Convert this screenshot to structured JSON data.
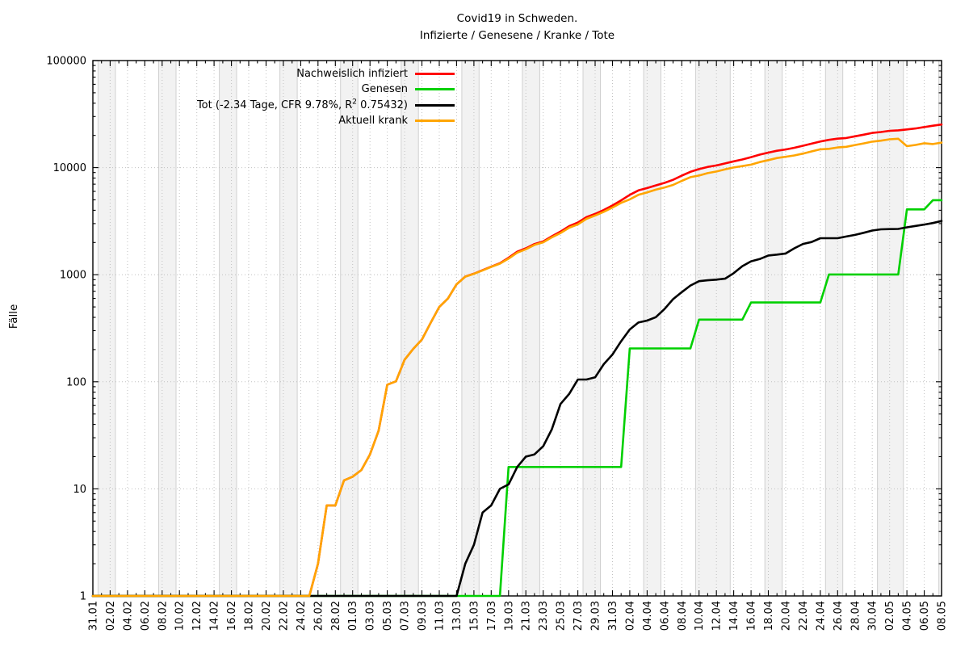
{
  "title": {
    "line1": "Covid19 in Schweden.",
    "line2": "Infizierte / Genesene / Kranke / Tote"
  },
  "y_axis": {
    "label": "Fälle",
    "tick_labels": [
      "100000",
      "10000",
      "1000",
      "100",
      "10",
      "1"
    ]
  },
  "legend": {
    "entries": [
      {
        "id": "infected",
        "color": "#ff0000",
        "parts": [
          {
            "text": "Nachweislich infiziert"
          }
        ]
      },
      {
        "id": "recovered",
        "color": "#00d000",
        "parts": [
          {
            "text": "Genesen"
          }
        ]
      },
      {
        "id": "dead",
        "color": "#000000",
        "parts": [
          {
            "text": "Tot (-2.34 Tage, CFR 9.78%, R"
          },
          {
            "text": "2",
            "sup": true
          },
          {
            "text": " 0.75432)"
          }
        ]
      },
      {
        "id": "active",
        "color": "#ffa500",
        "parts": [
          {
            "text": "Aktuell krank"
          }
        ]
      }
    ]
  },
  "chart_data": {
    "type": "line",
    "title": "Covid19 in Schweden. Infizierte / Genesene / Kranke / Tote",
    "xlabel": "",
    "ylabel": "Fälle",
    "y_scale": "log10",
    "ylim": [
      1,
      100000
    ],
    "grid": true,
    "legend_position": "top-center-inside",
    "days_total": 98,
    "x_tick_every_days": 2,
    "x_tick_labels": [
      "31.01",
      "02.02",
      "04.02",
      "06.02",
      "08.02",
      "10.02",
      "12.02",
      "14.02",
      "16.02",
      "18.02",
      "20.02",
      "22.02",
      "24.02",
      "26.02",
      "28.02",
      "01.03",
      "03.03",
      "05.03",
      "07.03",
      "09.03",
      "11.03",
      "13.03",
      "15.03",
      "17.03",
      "19.03",
      "21.03",
      "23.03",
      "25.03",
      "27.03",
      "29.03",
      "31.03",
      "02.04",
      "04.04",
      "06.04",
      "08.04",
      "10.04",
      "12.04",
      "14.04",
      "16.04",
      "18.04",
      "20.04",
      "22.04",
      "24.04",
      "26.04",
      "28.04",
      "30.04",
      "02.05",
      "04.05",
      "06.05",
      "08.05"
    ],
    "weekend_bands": [
      [
        0.6,
        2.6
      ],
      [
        7.6,
        9.6
      ],
      [
        14.6,
        16.6
      ],
      [
        21.6,
        23.6
      ],
      [
        28.6,
        30.6
      ],
      [
        35.6,
        37.6
      ],
      [
        42.6,
        44.6
      ],
      [
        49.6,
        51.6
      ],
      [
        56.6,
        58.6
      ],
      [
        63.6,
        65.6
      ],
      [
        69.6,
        73.6
      ],
      [
        77.6,
        79.6
      ],
      [
        84.6,
        86.6
      ],
      [
        90.6,
        93.6
      ]
    ],
    "marker_line_day": 97.7,
    "colors": {
      "band_fill": "#f2f2f2",
      "band_edge": "#d0d0d0",
      "grid": "#c0c0c0",
      "frame": "#000000",
      "marker_line": "#c6c6c6"
    },
    "series": [
      {
        "id": "infected",
        "name": "Nachweislich infiziert",
        "color": "#ff0000",
        "values": [
          1,
          1,
          1,
          1,
          1,
          1,
          1,
          1,
          1,
          1,
          1,
          1,
          1,
          1,
          1,
          1,
          1,
          1,
          1,
          1,
          1,
          1,
          1,
          1,
          1,
          1,
          2,
          7,
          7,
          12,
          13,
          15,
          21,
          35,
          94,
          101,
          161,
          203,
          248,
          355,
          500,
          599,
          814,
          961,
          1022,
          1103,
          1190,
          1279,
          1439,
          1639,
          1763,
          1934,
          2046,
          2286,
          2526,
          2840,
          3069,
          3447,
          3700,
          4028,
          4435,
          4947,
          5568,
          6131,
          6443,
          6830,
          7206,
          7693,
          8419,
          9141,
          9685,
          10151,
          10483,
          10948,
          11445,
          11927,
          12540,
          13216,
          13822,
          14385,
          14777,
          15322,
          16004,
          16755,
          17567,
          18177,
          18640,
          18926,
          19621,
          20302,
          21092,
          21520,
          22082,
          22317,
          22721,
          23216,
          23918,
          24623,
          25265
        ]
      },
      {
        "id": "recovered",
        "name": "Genesen",
        "color": "#00d000",
        "values": [
          1,
          1,
          1,
          1,
          1,
          1,
          1,
          1,
          1,
          1,
          1,
          1,
          1,
          1,
          1,
          1,
          1,
          1,
          1,
          1,
          1,
          1,
          1,
          1,
          1,
          1,
          1,
          1,
          1,
          1,
          1,
          1,
          1,
          1,
          1,
          1,
          1,
          1,
          1,
          1,
          1,
          1,
          1,
          1,
          1,
          1,
          1,
          1,
          16,
          16,
          16,
          16,
          16,
          16,
          16,
          16,
          16,
          16,
          16,
          16,
          16,
          16,
          205,
          205,
          205,
          205,
          205,
          205,
          205,
          205,
          381,
          381,
          381,
          381,
          381,
          381,
          550,
          550,
          550,
          550,
          550,
          550,
          550,
          550,
          550,
          1005,
          1005,
          1005,
          1005,
          1005,
          1005,
          1005,
          1005,
          1005,
          4074,
          4074,
          4074,
          4971,
          4971
        ]
      },
      {
        "id": "dead",
        "name": "Tot (-2.34 Tage, CFR 9.78%, R2 0.75432)",
        "color": "#000000",
        "values": [
          1,
          1,
          1,
          1,
          1,
          1,
          1,
          1,
          1,
          1,
          1,
          1,
          1,
          1,
          1,
          1,
          1,
          1,
          1,
          1,
          1,
          1,
          1,
          1,
          1,
          1,
          1,
          1,
          1,
          1,
          1,
          1,
          1,
          1,
          1,
          1,
          1,
          1,
          1,
          1,
          1,
          1,
          1,
          2,
          3,
          6,
          7,
          10,
          11,
          16,
          20,
          21,
          25,
          36,
          62,
          77,
          105,
          105,
          110,
          146,
          180,
          239,
          308,
          358,
          373,
          401,
          477,
          591,
          687,
          793,
          870,
          887,
          899,
          919,
          1033,
          1203,
          1333,
          1400,
          1511,
          1540,
          1580,
          1765,
          1937,
          2021,
          2192,
          2194,
          2194,
          2274,
          2355,
          2462,
          2586,
          2653,
          2669,
          2679,
          2769,
          2854,
          2941,
          3040,
          3175
        ]
      },
      {
        "id": "active",
        "name": "Aktuell krank",
        "color": "#ffa500",
        "values": [
          1,
          1,
          1,
          1,
          1,
          1,
          1,
          1,
          1,
          1,
          1,
          1,
          1,
          1,
          1,
          1,
          1,
          1,
          1,
          1,
          1,
          1,
          1,
          1,
          1,
          1,
          2,
          7,
          7,
          12,
          13,
          15,
          21,
          35,
          94,
          101,
          161,
          203,
          248,
          355,
          500,
          599,
          813,
          959,
          1019,
          1097,
          1183,
          1269,
          1412,
          1607,
          1727,
          1897,
          2005,
          2234,
          2448,
          2747,
          2948,
          3326,
          3574,
          3866,
          4239,
          4692,
          5055,
          5568,
          5865,
          6224,
          6524,
          6897,
          7527,
          8143,
          8434,
          8883,
          9203,
          9648,
          10031,
          10343,
          10657,
          11266,
          11761,
          12295,
          12647,
          13007,
          13517,
          14184,
          14825,
          14978,
          15441,
          15647,
          16261,
          16835,
          17501,
          17862,
          18408,
          18633,
          15878,
          16288,
          16903,
          16612,
          17119
        ]
      }
    ]
  }
}
